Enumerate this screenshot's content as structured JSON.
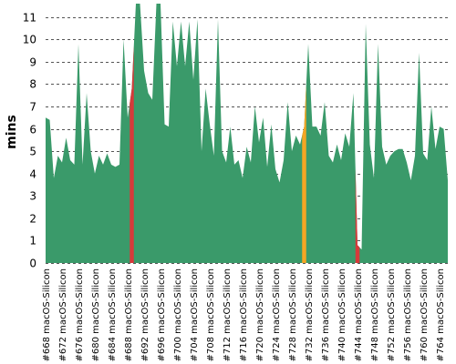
{
  "chart_data": {
    "type": "area",
    "ylabel": "mins",
    "ylim": [
      0,
      11.6
    ],
    "yticks": [
      0,
      1,
      2,
      3,
      4,
      5,
      6,
      7,
      8,
      9,
      10,
      11
    ],
    "grid": true,
    "default_color": "#3a9a6a",
    "colors": {
      "ok": "#3a9a6a",
      "fail": "#d63a3a",
      "warn": "#f5a623"
    },
    "x_tick_labels": [
      "#668 macOS-Silicon",
      "#672 macOS-Silicon",
      "#676 macOS-Silicon",
      "#680 macOS-Silicon",
      "#684 macOS-Silicon",
      "#688 macOS-Silicon",
      "#692 macOS-Silicon",
      "#696 macOS-Silicon",
      "#700 macOS-Silicon",
      "#704 macOS-Silicon",
      "#708 macOS-Silicon",
      "#712 macOS-Silicon",
      "#716 macOS-Silicon",
      "#720 macOS-Silicon",
      "#724 macOS-Silicon",
      "#728 macOS-Silicon",
      "#732 macOS-Silicon",
      "#736 macOS-Silicon",
      "#740 macOS-Silicon",
      "#744 macOS-Silicon",
      "#748 macOS-Silicon",
      "#752 macOS-Silicon",
      "#756 macOS-Silicon",
      "#760 macOS-Silicon",
      "#764 macOS-Silicon"
    ],
    "x": [
      668,
      669,
      670,
      671,
      672,
      673,
      674,
      675,
      676,
      677,
      678,
      679,
      680,
      681,
      682,
      683,
      684,
      685,
      686,
      687,
      688,
      689,
      690,
      691,
      692,
      693,
      694,
      695,
      696,
      697,
      698,
      699,
      700,
      701,
      702,
      703,
      704,
      705,
      706,
      707,
      708,
      709,
      710,
      711,
      712,
      713,
      714,
      715,
      716,
      717,
      718,
      719,
      720,
      721,
      722,
      723,
      724,
      725,
      726,
      727,
      728,
      729,
      730,
      731,
      732,
      733,
      734,
      735,
      736,
      737,
      738,
      739,
      740,
      741,
      742,
      743,
      744,
      745,
      746,
      747,
      748,
      749,
      750,
      751,
      752,
      753,
      754,
      755,
      756,
      757,
      758,
      759,
      760,
      761,
      762,
      763,
      764,
      765,
      766
    ],
    "values": [
      6.5,
      6.4,
      3.8,
      4.8,
      4.5,
      5.6,
      4.6,
      4.4,
      9.8,
      4.4,
      7.6,
      5.0,
      4.0,
      4.8,
      4.4,
      4.9,
      4.4,
      4.3,
      4.4,
      10.0,
      6.5,
      7.8,
      11.6,
      11.6,
      8.6,
      7.6,
      7.3,
      11.6,
      11.6,
      6.2,
      6.1,
      10.8,
      8.8,
      10.8,
      8.8,
      10.8,
      8.2,
      10.9,
      5.0,
      7.8,
      6.2,
      4.8,
      10.9,
      5.0,
      4.5,
      6.1,
      4.4,
      4.6,
      3.8,
      5.2,
      4.5,
      7.0,
      5.4,
      6.5,
      4.3,
      6.2,
      4.2,
      3.6,
      4.6,
      7.2,
      5.0,
      5.7,
      5.3,
      6.1,
      9.8,
      6.1,
      6.1,
      5.7,
      7.2,
      4.8,
      4.5,
      5.3,
      4.6,
      5.8,
      5.2,
      7.6,
      0.8,
      0.6,
      10.7,
      5.3,
      3.8,
      9.8,
      5.2,
      4.4,
      4.8,
      5.0,
      5.1,
      5.1,
      4.5,
      3.7,
      4.8,
      9.4,
      4.9,
      4.6,
      7.0,
      5.1,
      6.1,
      6.0,
      3.7
    ],
    "highlights": [
      {
        "x": 689,
        "status": "fail"
      },
      {
        "x": 731,
        "status": "warn"
      },
      {
        "x": 744,
        "status": "fail"
      }
    ]
  }
}
